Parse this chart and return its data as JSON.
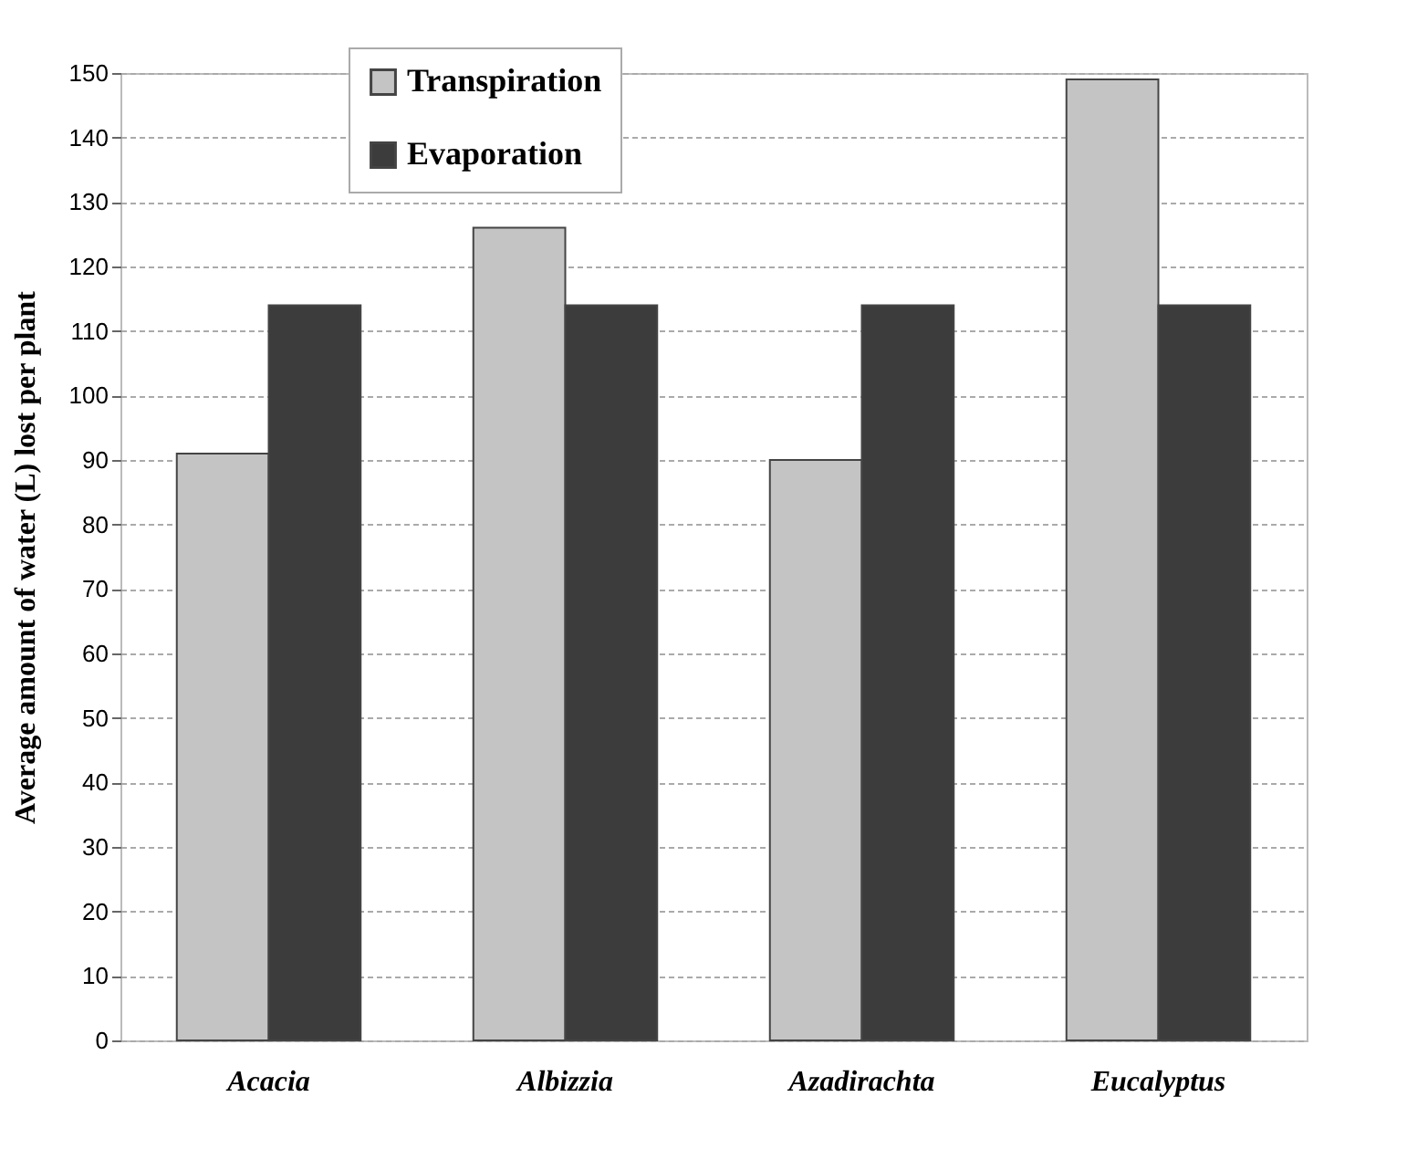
{
  "chart_data": {
    "type": "bar",
    "ylabel": "Average amount of water (L) lost per plant",
    "categories": [
      "Acacia",
      "Albizzia",
      "Azadirachta",
      "Eucalyptus"
    ],
    "series": [
      {
        "name": "Transpiration",
        "color": "#c4c4c4",
        "values": [
          91,
          126,
          90,
          149
        ]
      },
      {
        "name": "Evaporation",
        "color": "#3c3c3c",
        "values": [
          114,
          114,
          114,
          114
        ]
      }
    ],
    "ylim": [
      0,
      150
    ],
    "yticks": [
      0,
      10,
      20,
      30,
      40,
      50,
      60,
      70,
      80,
      90,
      100,
      110,
      120,
      130,
      140,
      150
    ],
    "grid": "y",
    "legend": "top left"
  }
}
